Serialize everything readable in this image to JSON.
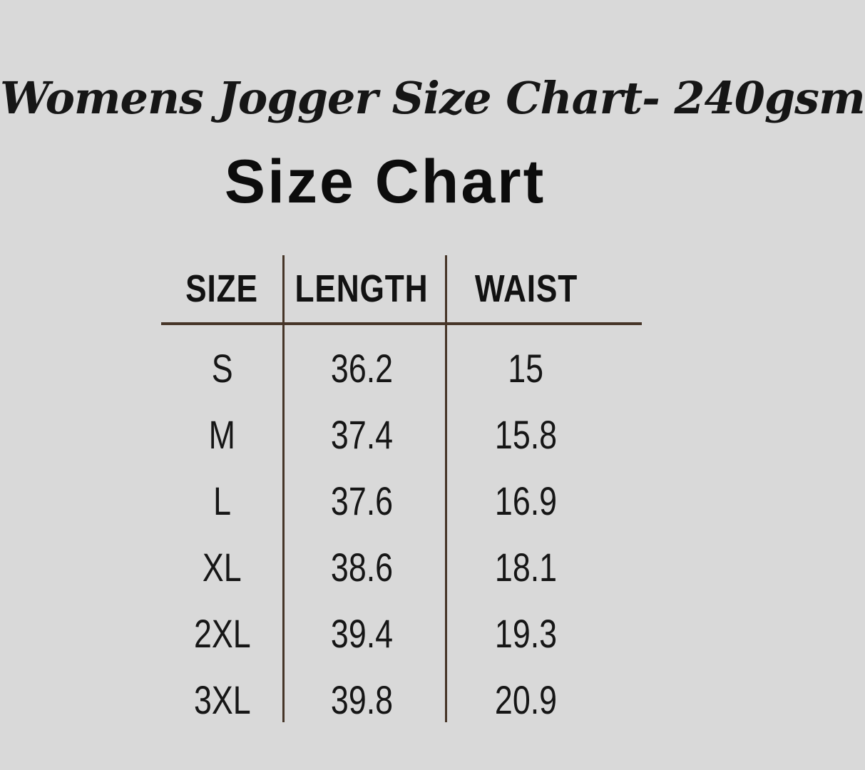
{
  "canvas": {
    "background_color": "#d9d9d9",
    "text_color": "#141414",
    "line_color": "#463528"
  },
  "titles": {
    "script_title": "Womens Jogger Size Chart- 240gsm",
    "main_title": "Size Chart"
  },
  "chart_data": {
    "type": "table",
    "title": "Womens Jogger Size Chart- 240gsm",
    "subtitle": "Size Chart",
    "columns": [
      "SIZE",
      "LENGTH",
      "WAIST"
    ],
    "rows": [
      [
        "S",
        "36.2",
        "15"
      ],
      [
        "M",
        "37.4",
        "15.8"
      ],
      [
        "L",
        "37.6",
        "16.9"
      ],
      [
        "XL",
        "38.6",
        "18.1"
      ],
      [
        "2XL",
        "39.4",
        "19.3"
      ],
      [
        "3XL",
        "39.8",
        "20.9"
      ]
    ],
    "layout": {
      "grid": "off",
      "header_rule": "horizontal line below header",
      "column_dividers": "vertical lines between columns"
    }
  }
}
